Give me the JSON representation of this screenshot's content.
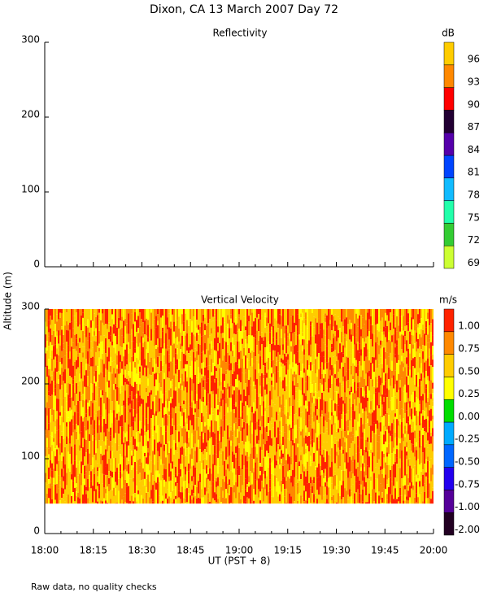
{
  "header": {
    "title": "Dixon, CA 13 March 2007  Day  72",
    "ylabel": "Altitude (m)",
    "xlabel": "UT  (PST + 8)",
    "footer": "Raw data, no quality checks"
  },
  "chart_data": [
    {
      "type": "heatmap",
      "title": "Reflectivity",
      "colorbar_unit": "dB",
      "ylim": [
        0,
        300
      ],
      "yticks": [
        0,
        100,
        200,
        300
      ],
      "xticks": [
        "18:00",
        "18:15",
        "18:30",
        "18:45",
        "19:00",
        "19:15",
        "19:30",
        "19:45",
        "20:00"
      ],
      "colorbar_levels": [
        69,
        72,
        75,
        78,
        81,
        84,
        87,
        90,
        93,
        96
      ],
      "colorbar_colors": [
        "#ccff33",
        "#33cc33",
        "#22ffaa",
        "#11bbff",
        "#0044ff",
        "#5500aa",
        "#220033",
        "#ff0000",
        "#ff8800",
        "#ffcc00"
      ]
    },
    {
      "type": "heatmap",
      "title": "Vertical Velocity",
      "colorbar_unit": "m/s",
      "ylim": [
        0,
        300
      ],
      "yticks": [
        0,
        100,
        200,
        300
      ],
      "data_ylim": [
        40,
        300
      ],
      "xticks": [
        "18:00",
        "18:15",
        "18:30",
        "18:45",
        "19:00",
        "19:15",
        "19:30",
        "19:45",
        "20:00"
      ],
      "colorbar_levels": [
        {
          "value": -2,
          "label": "-2.00"
        },
        {
          "value": -1,
          "label": "-1.00"
        },
        {
          "value": -0.75,
          "label": "-0.75"
        },
        {
          "value": -0.5,
          "label": "-0.50"
        },
        {
          "value": -0.25,
          "label": "-0.25"
        },
        {
          "value": 0,
          "label": "0.00"
        },
        {
          "value": 0.25,
          "label": "0.25"
        },
        {
          "value": 0.5,
          "label": "0.50"
        },
        {
          "value": 0.75,
          "label": "0.75"
        },
        {
          "value": 1,
          "label": "1.00"
        }
      ],
      "colorbar_colors": [
        "#220022",
        "#550099",
        "#2200ee",
        "#0066ff",
        "#00aaff",
        "#00dd00",
        "#ffff00",
        "#ffcc00",
        "#ff8800",
        "#ff2200"
      ]
    }
  ]
}
